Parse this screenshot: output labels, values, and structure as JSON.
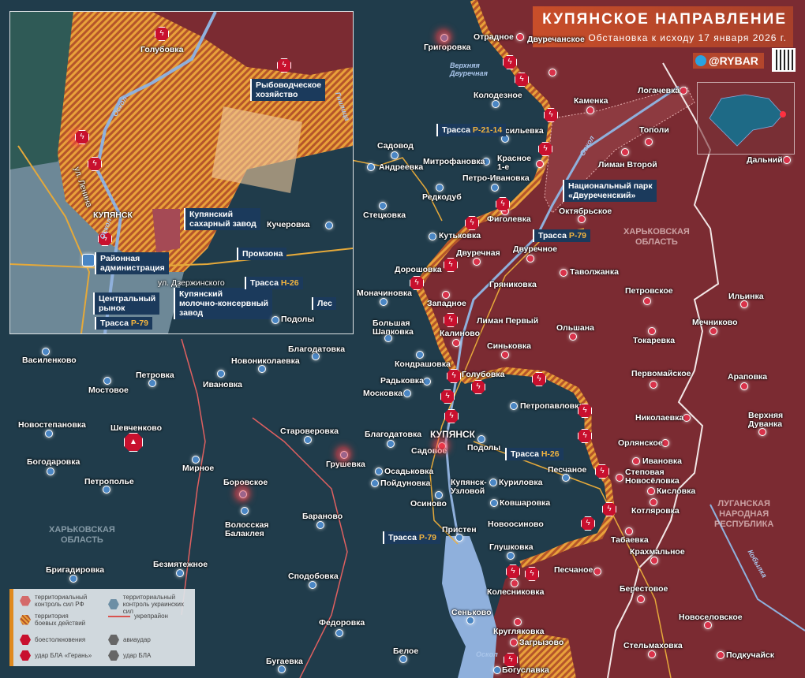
{
  "header": {
    "title": "КУПЯНСКОЕ НАПРАВЛЕНИЕ",
    "subtitle": "Обстановка к исходу 17 января 2026 г.",
    "brand": "@RYBAR",
    "brand_icon": "telegram-icon"
  },
  "colors": {
    "ru_control": "#7b2b32",
    "ua_control": "#203c4b",
    "combat_zone": "#e39a2f",
    "river": "#8fb0dc",
    "strike": "#c8102e",
    "title_bg": "#c84e2a"
  },
  "regions": [
    "ХАРЬКОВСКАЯ\nОБЛАСТЬ",
    "ХАРЬКОВСКАЯ\nОБЛАСТЬ",
    "ЛУГАНСКАЯ\nНАРОДНАЯ\nРЕСПУБЛИКА"
  ],
  "rivers": [
    "Верхняя\nДвуречная",
    "Оскол",
    "Оскол",
    "Кобылка"
  ],
  "roads": [
    {
      "label": "Трасса",
      "code": "Р-21-14"
    },
    {
      "label": "Трасса",
      "code": "Р-79"
    },
    {
      "label": "Трасса",
      "code": "Н-26"
    },
    {
      "label": "Трасса",
      "code": "Р-79"
    }
  ],
  "park": "Национальный парк\n«Двуреченский»",
  "places": [
    {
      "name": "Отрадное",
      "side": "ru"
    },
    {
      "name": "Двуречанское",
      "side": "ru"
    },
    {
      "name": "Каменка",
      "side": "ru"
    },
    {
      "name": "Логачевка",
      "side": "ru"
    },
    {
      "name": "Тополи",
      "side": "ru"
    },
    {
      "name": "Лиман Второй",
      "side": "ru"
    },
    {
      "name": "Октябрьское",
      "side": "ru"
    },
    {
      "name": "Красное\n1-е",
      "side": "ru"
    },
    {
      "name": "Фиголевка",
      "side": "ru"
    },
    {
      "name": "Двуречная",
      "side": "ru"
    },
    {
      "name": "Двуречное",
      "side": "ru"
    },
    {
      "name": "Таволжанка",
      "side": "ru"
    },
    {
      "name": "Гряниковка",
      "side": "ru"
    },
    {
      "name": "Западное",
      "side": "ru"
    },
    {
      "name": "Лиман Первый",
      "side": "ru"
    },
    {
      "name": "Калиново",
      "side": "ru"
    },
    {
      "name": "Синьковка",
      "side": "ru"
    },
    {
      "name": "Ольшана",
      "side": "ru"
    },
    {
      "name": "Петровское",
      "side": "ru"
    },
    {
      "name": "Токаревка",
      "side": "ru"
    },
    {
      "name": "Первомайское",
      "side": "ru"
    },
    {
      "name": "Ильинка",
      "side": "ru"
    },
    {
      "name": "Мечниково",
      "side": "ru"
    },
    {
      "name": "Араповка",
      "side": "ru"
    },
    {
      "name": "Николаевка",
      "side": "ru"
    },
    {
      "name": "Верхняя\nДуванка",
      "side": "ru"
    },
    {
      "name": "Орлянское",
      "side": "ru"
    },
    {
      "name": "Ивановка",
      "side": "ru"
    },
    {
      "name": "Степовая\nНовосёловка",
      "side": "ru"
    },
    {
      "name": "Кисловка",
      "side": "ru"
    },
    {
      "name": "Котляровка",
      "side": "ru"
    },
    {
      "name": "Табаевка",
      "side": "ru"
    },
    {
      "name": "Крахмальное",
      "side": "ru"
    },
    {
      "name": "Песчаное",
      "side": "ru"
    },
    {
      "name": "Берестовое",
      "side": "ru"
    },
    {
      "name": "Новоселовское",
      "side": "ru"
    },
    {
      "name": "Стельмаховка",
      "side": "ru"
    },
    {
      "name": "Подкучайск",
      "side": "ru"
    },
    {
      "name": "Колесниковка",
      "side": "ru"
    },
    {
      "name": "Кругляковка",
      "side": "ru"
    },
    {
      "name": "Загрызово",
      "side": "ru"
    },
    {
      "name": "Дальний",
      "side": "ru"
    },
    {
      "name": "Садовое",
      "side": "ru"
    },
    {
      "name": "Григоровка",
      "side": "ua"
    },
    {
      "name": "Колодезное",
      "side": "ua"
    },
    {
      "name": "Нововасильевка",
      "side": "ua"
    },
    {
      "name": "Садовод",
      "side": "ua"
    },
    {
      "name": "Андреевка",
      "side": "ua"
    },
    {
      "name": "Митрофановка",
      "side": "ua"
    },
    {
      "name": "Петро-Ивановка",
      "side": "ua"
    },
    {
      "name": "Редкодуб",
      "side": "ua"
    },
    {
      "name": "Стецковка",
      "side": "ua"
    },
    {
      "name": "Кутьковка",
      "side": "ua"
    },
    {
      "name": "Дорошовка",
      "side": "ua"
    },
    {
      "name": "Моначиновка",
      "side": "ua"
    },
    {
      "name": "Большая\nШапковка",
      "side": "ua"
    },
    {
      "name": "Кондрашовка",
      "side": "ua"
    },
    {
      "name": "Радьковка",
      "side": "ua"
    },
    {
      "name": "Московка",
      "side": "ua"
    },
    {
      "name": "Голубовка",
      "side": "ua"
    },
    {
      "name": "Петропавловка",
      "side": "ua"
    },
    {
      "name": "Благодатовка",
      "side": "ua"
    },
    {
      "name": "КУПЯНСК",
      "side": "ua"
    },
    {
      "name": "Подолы",
      "side": "ua"
    },
    {
      "name": "Осадьковка",
      "side": "ua"
    },
    {
      "name": "Пойдуновка",
      "side": "ua"
    },
    {
      "name": "Купянск-\nУзловой",
      "side": "ua"
    },
    {
      "name": "Осиново",
      "side": "ua"
    },
    {
      "name": "Куриловка",
      "side": "ua"
    },
    {
      "name": "Песчаное",
      "side": "ua"
    },
    {
      "name": "Ковшаровка",
      "side": "ua"
    },
    {
      "name": "Пристен",
      "side": "ua"
    },
    {
      "name": "Новоосиново",
      "side": "ua"
    },
    {
      "name": "Глушковка",
      "side": "ua"
    },
    {
      "name": "Сеньково",
      "side": "ua"
    },
    {
      "name": "Белое",
      "side": "ua"
    },
    {
      "name": "Богуславка",
      "side": "ua"
    },
    {
      "name": "Василенково",
      "side": "ua"
    },
    {
      "name": "Мостовое",
      "side": "ua"
    },
    {
      "name": "Петровка",
      "side": "ua"
    },
    {
      "name": "Ивановка",
      "side": "ua"
    },
    {
      "name": "Новониколаевка",
      "side": "ua"
    },
    {
      "name": "Благодатовка",
      "side": "ua"
    },
    {
      "name": "Новостепановка",
      "side": "ua"
    },
    {
      "name": "Шевченково",
      "side": "ua"
    },
    {
      "name": "Богодаровка",
      "side": "ua"
    },
    {
      "name": "Петрополье",
      "side": "ua"
    },
    {
      "name": "Мирное",
      "side": "ua"
    },
    {
      "name": "Боровское",
      "side": "ua"
    },
    {
      "name": "Волосская\nБалаклея",
      "side": "ua"
    },
    {
      "name": "Староверовка",
      "side": "ua"
    },
    {
      "name": "Грушевка",
      "side": "ua"
    },
    {
      "name": "Бараново",
      "side": "ua"
    },
    {
      "name": "Безмятежное",
      "side": "ua"
    },
    {
      "name": "Бригадировка",
      "side": "ua"
    },
    {
      "name": "Сподобовка",
      "side": "ua"
    },
    {
      "name": "Федоровка",
      "side": "ua"
    },
    {
      "name": "Бугаевка",
      "side": "ua"
    }
  ],
  "inset": {
    "places": [
      "Голубовка",
      "КУПЯНСК",
      "Кучеровка",
      "Подолы"
    ],
    "boxes": [
      "Рыбоводческое\nхозяйство",
      "Купянский\nсахарный завод",
      "Промзона",
      "Купянский\nмолочно-консервный\nзавод",
      "Районная\nадминистрация",
      "Центральный\nрынок",
      "Лес"
    ],
    "streets": [
      "ул. Ленина",
      "ул. Дзержинского"
    ],
    "rivers": [
      "Оскол",
      "Оскол",
      "Гнилица"
    ],
    "roads": [
      {
        "label": "Трасса",
        "code": "Р-79"
      },
      {
        "label": "Трасса",
        "code": "Н-26"
      }
    ]
  },
  "legend": {
    "items": [
      {
        "label": "территориальный\nконтроль сил РФ",
        "icon": "hexagon-red-icon"
      },
      {
        "label": "территориальный\nконтроль украинских сил",
        "icon": "hexagon-blue-icon"
      },
      {
        "label": "территория\nбоевых действий",
        "icon": "hatched-hexagon-icon"
      },
      {
        "label": "укрепрайон",
        "icon": "line-red-icon"
      },
      {
        "label": "боестолкновения",
        "icon": "lightning-icon"
      },
      {
        "label": "авиаудар",
        "icon": "airstrike-icon"
      },
      {
        "label": "удар БЛА «Герань»",
        "icon": "drone-geran-icon"
      },
      {
        "label": "удар БЛА",
        "icon": "drone-icon"
      }
    ]
  }
}
